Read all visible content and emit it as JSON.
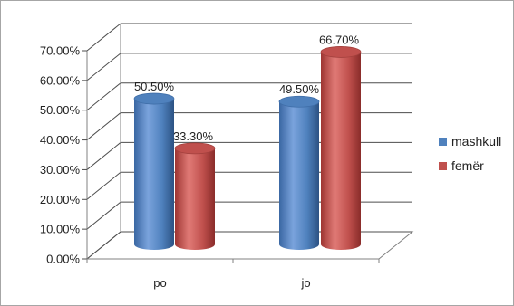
{
  "chart_data": {
    "type": "bar",
    "style": "3d-cylinder",
    "categories": [
      "po",
      "jo"
    ],
    "series": [
      {
        "name": "mashkull",
        "values": [
          50.5,
          49.5
        ],
        "labels": [
          "50.50%",
          "49.50%"
        ],
        "color": "#4f81bd"
      },
      {
        "name": "femër",
        "values": [
          33.3,
          66.7
        ],
        "labels": [
          "33.30%",
          "66.70%"
        ],
        "color": "#c0504d"
      }
    ],
    "y_ticks": [
      "0.00%",
      "10.00%",
      "20.00%",
      "30.00%",
      "40.00%",
      "50.00%",
      "60.00%",
      "70.00%"
    ],
    "ylim": [
      0,
      70
    ],
    "grid": true,
    "legend_position": "right"
  }
}
